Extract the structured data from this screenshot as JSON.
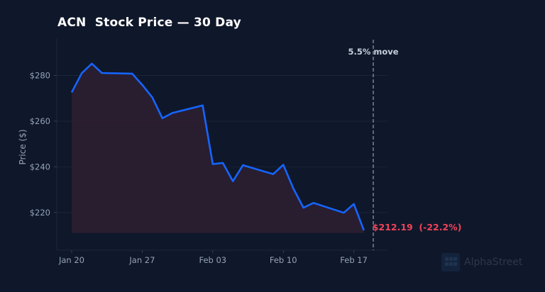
{
  "chart_data": {
    "type": "area",
    "title": "ACN  Stock Price — 30 Day",
    "xlabel": "",
    "ylabel": "Price ($)",
    "ylim": [
      203.5,
      296.3
    ],
    "yticks": [
      220,
      240,
      260,
      280
    ],
    "ytick_labels": [
      "$220",
      "$240",
      "$260",
      "$280"
    ],
    "xticks": [
      0,
      7,
      14,
      21,
      28
    ],
    "xtick_labels": [
      "Jan 20",
      "Jan 27",
      "Feb 03",
      "Feb 10",
      "Feb 17"
    ],
    "x": [
      0,
      1,
      2,
      3,
      6,
      7,
      8,
      9,
      10,
      13,
      14,
      15,
      16,
      17,
      20,
      21,
      22,
      23,
      24,
      27,
      28,
      29
    ],
    "values": [
      272.6,
      281,
      285.2,
      281.1,
      280.8,
      275.9,
      270.4,
      261.3,
      263.6,
      266.9,
      241.2,
      241.7,
      233.7,
      240.7,
      236.8,
      240.9,
      230.5,
      222.1,
      224.2,
      219.9,
      223.7,
      212.19
    ],
    "baseline": 211.0,
    "marker_x": 30,
    "marker_label": "5.5% move",
    "end_label": "$212.19  (-22.2%)",
    "grid": true,
    "colors": {
      "background": "#0f172a",
      "line": "#1565ff",
      "fill": "#2b1d30",
      "end_label": "#f0435a",
      "marker": "#8a94a6",
      "axis_text": "#94a3b8"
    }
  },
  "watermark": {
    "text": "AlphaStreet"
  }
}
